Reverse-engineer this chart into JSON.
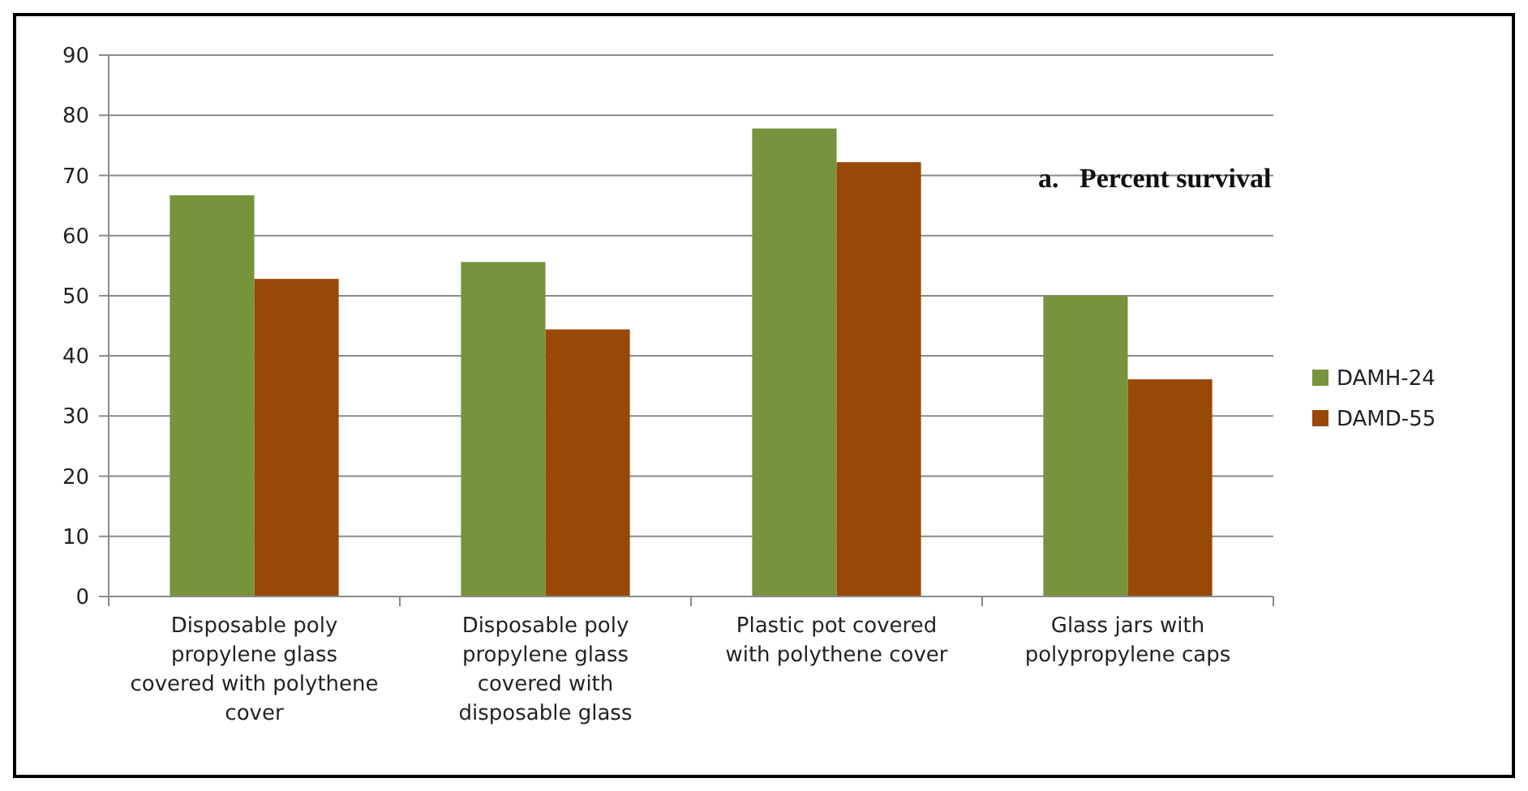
{
  "chart_data": {
    "type": "bar",
    "title": "a.   Percent survival",
    "categories": [
      "Disposable poly propylene glass covered with polythene cover",
      "Disposable poly propylene glass covered with disposable glass",
      "Plastic pot covered with polythene cover",
      "Glass jars with polypropylene caps"
    ],
    "series": [
      {
        "name": "DAMH-24",
        "color": "#77933c",
        "values": [
          66.7,
          55.6,
          77.8,
          50
        ]
      },
      {
        "name": "DAMD-55",
        "color": "#984807",
        "values": [
          52.8,
          44.4,
          72.2,
          36.1
        ]
      }
    ],
    "ylim": [
      0,
      90
    ],
    "yticks": [
      0,
      10,
      20,
      30,
      40,
      50,
      60,
      70,
      80,
      90
    ],
    "grid": "y",
    "legend": "right"
  }
}
